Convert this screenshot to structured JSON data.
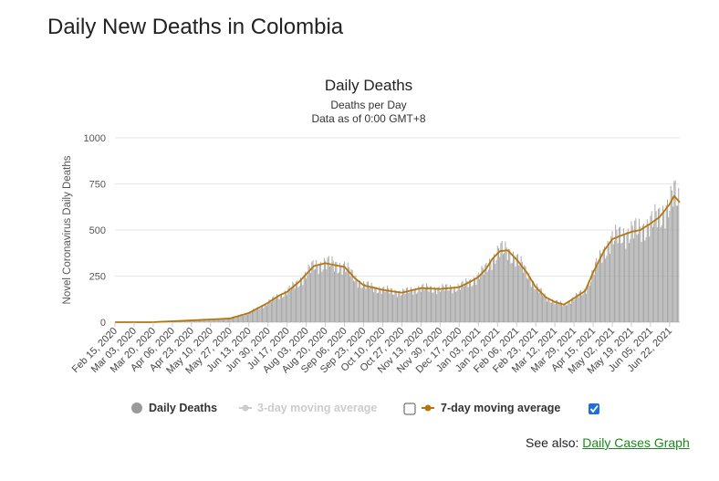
{
  "page": {
    "heading": "Daily New Deaths in Colombia",
    "see_also_prefix": "See also:",
    "see_also_link": "Daily Cases Graph"
  },
  "legend": {
    "daily_deaths": "Daily Deaths",
    "three_day": "3-day moving average",
    "three_day_checked": false,
    "seven_day": "7-day moving average",
    "seven_day_checked": true
  },
  "colors": {
    "bars": "#a0a0a0",
    "seven_day_line": "#b8750b",
    "three_day_inactive": "#cccccc",
    "link": "#1a8a1a",
    "checkbox_checked": "#1f6fd6"
  },
  "chart_data": {
    "type": "bar",
    "title": "Daily Deaths",
    "subtitle_lines": [
      "Deaths per Day",
      "Data as of 0:00 GMT+8"
    ],
    "ylabel": "Novel Coronavirus Daily Deaths",
    "xlabel": "",
    "ylim": [
      0,
      1000
    ],
    "yticks": [
      0,
      250,
      500,
      750,
      1000
    ],
    "x_start": "2020-02-15",
    "x_end": "2021-07-01",
    "xtick_labels": [
      "Feb 15, 2020",
      "Mar 03, 2020",
      "Mar 20, 2020",
      "Apr 06, 2020",
      "Apr 23, 2020",
      "May 10, 2020",
      "May 27, 2020",
      "Jun 13, 2020",
      "Jun 30, 2020",
      "Jul 17, 2020",
      "Aug 03, 2020",
      "Aug 20, 2020",
      "Sep 06, 2020",
      "Sep 23, 2020",
      "Oct 10, 2020",
      "Oct 27, 2020",
      "Nov 13, 2020",
      "Nov 30, 2020",
      "Dec 17, 2020",
      "Jan 03, 2021",
      "Jan 20, 2021",
      "Feb 06, 2021",
      "Feb 23, 2021",
      "Mar 12, 2021",
      "Mar 29, 2021",
      "Apr 15, 2021",
      "May 02, 2021",
      "May 19, 2021",
      "Jun 05, 2021",
      "Jun 22, 2021"
    ],
    "grid": true,
    "series": [
      {
        "name": "7-day moving average",
        "style": "line",
        "points": [
          [
            "2020-02-15",
            0
          ],
          [
            "2020-03-20",
            0
          ],
          [
            "2020-03-25",
            2
          ],
          [
            "2020-04-06",
            5
          ],
          [
            "2020-04-23",
            10
          ],
          [
            "2020-05-10",
            15
          ],
          [
            "2020-05-27",
            20
          ],
          [
            "2020-06-13",
            50
          ],
          [
            "2020-06-30",
            105
          ],
          [
            "2020-07-10",
            145
          ],
          [
            "2020-07-17",
            165
          ],
          [
            "2020-07-27",
            215
          ],
          [
            "2020-08-03",
            260
          ],
          [
            "2020-08-10",
            305
          ],
          [
            "2020-08-20",
            320
          ],
          [
            "2020-08-28",
            310
          ],
          [
            "2020-09-06",
            300
          ],
          [
            "2020-09-15",
            240
          ],
          [
            "2020-09-23",
            200
          ],
          [
            "2020-10-10",
            175
          ],
          [
            "2020-10-27",
            160
          ],
          [
            "2020-11-13",
            185
          ],
          [
            "2020-11-30",
            180
          ],
          [
            "2020-12-17",
            190
          ],
          [
            "2020-12-27",
            220
          ],
          [
            "2021-01-03",
            245
          ],
          [
            "2021-01-10",
            290
          ],
          [
            "2021-01-15",
            340
          ],
          [
            "2021-01-22",
            385
          ],
          [
            "2021-01-29",
            390
          ],
          [
            "2021-02-06",
            340
          ],
          [
            "2021-02-15",
            270
          ],
          [
            "2021-02-23",
            190
          ],
          [
            "2021-03-04",
            135
          ],
          [
            "2021-03-12",
            110
          ],
          [
            "2021-03-20",
            95
          ],
          [
            "2021-03-29",
            130
          ],
          [
            "2021-04-08",
            170
          ],
          [
            "2021-04-15",
            270
          ],
          [
            "2021-04-25",
            390
          ],
          [
            "2021-05-02",
            450
          ],
          [
            "2021-05-10",
            470
          ],
          [
            "2021-05-19",
            490
          ],
          [
            "2021-05-27",
            500
          ],
          [
            "2021-06-05",
            535
          ],
          [
            "2021-06-13",
            570
          ],
          [
            "2021-06-22",
            640
          ],
          [
            "2021-06-26",
            685
          ],
          [
            "2021-07-01",
            650
          ]
        ]
      }
    ]
  }
}
